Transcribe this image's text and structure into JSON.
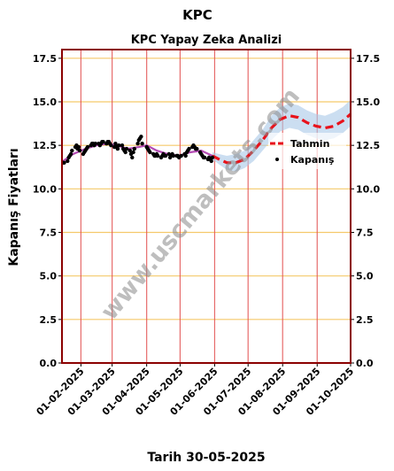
{
  "chart_data": {
    "type": "line",
    "title": "KPC",
    "subtitle": "KPC Yapay Zeka Analizi",
    "xlabel": "Tarih 30-05-2025",
    "ylabel": "Kapanış Fiyatları",
    "ylim": [
      0,
      18
    ],
    "yticks": [
      "0.0",
      "2.5",
      "5.0",
      "7.5",
      "10.0",
      "12.5",
      "15.0",
      "17.5"
    ],
    "ytick_values": [
      0,
      2.5,
      5,
      7.5,
      10,
      12.5,
      15,
      17.5
    ],
    "xlim": [
      "2025-01-15",
      "2025-10-01"
    ],
    "xticks": [
      "01-02-2025",
      "01-03-2025",
      "01-04-2025",
      "01-05-2025",
      "01-06-2025",
      "01-07-2025",
      "01-08-2025",
      "01-09-2025",
      "01-10-2025"
    ],
    "xtick_dates": [
      "2025-02-01",
      "2025-03-01",
      "2025-04-01",
      "2025-05-01",
      "2025-06-01",
      "2025-07-01",
      "2025-08-01",
      "2025-09-01",
      "2025-10-01"
    ],
    "grid": true,
    "legend_position": "right",
    "watermark": "www.uscmarkets.com",
    "colors": {
      "close": "#000000",
      "smooth": "#b44bb4",
      "forecast": "#e8121b",
      "band": "#a8c8e8",
      "hgrid": "#f5c96a",
      "vgrid": "#e35252",
      "frame": "#8b0000"
    },
    "series": [
      {
        "name": "Kapanış",
        "kind": "scatter",
        "x": [
          "2025-01-16",
          "2025-01-17",
          "2025-01-20",
          "2025-01-21",
          "2025-01-22",
          "2025-01-23",
          "2025-01-24",
          "2025-01-27",
          "2025-01-28",
          "2025-01-29",
          "2025-01-30",
          "2025-01-31",
          "2025-02-03",
          "2025-02-04",
          "2025-02-05",
          "2025-02-06",
          "2025-02-07",
          "2025-02-10",
          "2025-02-11",
          "2025-02-12",
          "2025-02-13",
          "2025-02-14",
          "2025-02-17",
          "2025-02-18",
          "2025-02-19",
          "2025-02-20",
          "2025-02-21",
          "2025-02-24",
          "2025-02-25",
          "2025-02-26",
          "2025-02-27",
          "2025-02-28",
          "2025-03-03",
          "2025-03-04",
          "2025-03-05",
          "2025-03-06",
          "2025-03-07",
          "2025-03-10",
          "2025-03-11",
          "2025-03-12",
          "2025-03-13",
          "2025-03-14",
          "2025-03-17",
          "2025-03-18",
          "2025-03-19",
          "2025-03-20",
          "2025-03-21",
          "2025-03-24",
          "2025-03-25",
          "2025-03-26",
          "2025-03-27",
          "2025-03-28",
          "2025-04-01",
          "2025-04-02",
          "2025-04-03",
          "2025-04-04",
          "2025-04-07",
          "2025-04-08",
          "2025-04-09",
          "2025-04-10",
          "2025-04-11",
          "2025-04-14",
          "2025-04-15",
          "2025-04-16",
          "2025-04-17",
          "2025-04-18",
          "2025-04-21",
          "2025-04-22",
          "2025-04-23",
          "2025-04-24",
          "2025-04-25",
          "2025-04-28",
          "2025-04-29",
          "2025-04-30",
          "2025-05-02",
          "2025-05-05",
          "2025-05-06",
          "2025-05-07",
          "2025-05-08",
          "2025-05-09",
          "2025-05-12",
          "2025-05-13",
          "2025-05-14",
          "2025-05-15",
          "2025-05-16",
          "2025-05-19",
          "2025-05-20",
          "2025-05-21",
          "2025-05-22",
          "2025-05-23",
          "2025-05-26",
          "2025-05-27",
          "2025-05-28",
          "2025-05-29",
          "2025-05-30"
        ],
        "y": [
          11.5,
          11.5,
          11.6,
          11.8,
          11.9,
          12.0,
          12.2,
          12.4,
          12.5,
          12.3,
          12.4,
          12.2,
          12.0,
          12.1,
          12.2,
          12.3,
          12.4,
          12.5,
          12.6,
          12.6,
          12.5,
          12.6,
          12.6,
          12.5,
          12.6,
          12.7,
          12.7,
          12.6,
          12.7,
          12.7,
          12.6,
          12.5,
          12.4,
          12.6,
          12.4,
          12.3,
          12.5,
          12.5,
          12.3,
          12.2,
          12.1,
          12.3,
          12.2,
          12.0,
          11.8,
          12.1,
          12.3,
          12.6,
          12.8,
          12.9,
          13.0,
          12.6,
          12.4,
          12.3,
          12.2,
          12.1,
          12.0,
          11.9,
          11.9,
          12.0,
          11.9,
          11.8,
          11.9,
          12.0,
          11.9,
          11.9,
          12.0,
          11.8,
          11.9,
          12.0,
          11.9,
          11.9,
          11.9,
          11.8,
          11.9,
          12.0,
          11.9,
          12.1,
          12.2,
          12.3,
          12.4,
          12.5,
          12.4,
          12.3,
          12.3,
          12.1,
          12.0,
          11.9,
          11.8,
          11.8,
          11.7,
          11.8,
          11.7,
          11.6,
          11.8
        ]
      },
      {
        "name": "",
        "kind": "line",
        "x": [
          "2025-01-16",
          "2025-01-25",
          "2025-02-05",
          "2025-02-15",
          "2025-02-25",
          "2025-03-05",
          "2025-03-15",
          "2025-03-25",
          "2025-04-01",
          "2025-04-10",
          "2025-04-20",
          "2025-04-30",
          "2025-05-10",
          "2025-05-20",
          "2025-05-30"
        ],
        "y": [
          11.6,
          12.0,
          12.3,
          12.5,
          12.6,
          12.5,
          12.3,
          12.4,
          12.5,
          12.2,
          12.0,
          11.9,
          12.1,
          12.2,
          11.9
        ]
      },
      {
        "name": "Tahmin",
        "kind": "dashed-line",
        "x": [
          "2025-05-30",
          "2025-06-05",
          "2025-06-12",
          "2025-06-20",
          "2025-06-28",
          "2025-07-06",
          "2025-07-14",
          "2025-07-22",
          "2025-07-30",
          "2025-08-07",
          "2025-08-15",
          "2025-08-23",
          "2025-08-31",
          "2025-09-08",
          "2025-09-16",
          "2025-09-24",
          "2025-10-01"
        ],
        "y": [
          11.9,
          11.7,
          11.5,
          11.5,
          11.7,
          12.2,
          12.8,
          13.5,
          14.0,
          14.2,
          14.1,
          13.8,
          13.6,
          13.5,
          13.6,
          13.9,
          14.3
        ]
      },
      {
        "name": "",
        "kind": "band",
        "x": [
          "2025-05-30",
          "2025-06-05",
          "2025-06-12",
          "2025-06-20",
          "2025-06-28",
          "2025-07-06",
          "2025-07-14",
          "2025-07-22",
          "2025-07-30",
          "2025-08-07",
          "2025-08-15",
          "2025-08-23",
          "2025-08-31",
          "2025-09-08",
          "2025-09-16",
          "2025-09-24",
          "2025-10-01"
        ],
        "lower": [
          11.7,
          11.4,
          11.1,
          11.0,
          11.2,
          11.6,
          12.2,
          12.8,
          13.3,
          13.5,
          13.4,
          13.1,
          12.9,
          12.8,
          12.9,
          13.2,
          13.6
        ],
        "upper": [
          12.1,
          12.0,
          11.9,
          12.0,
          12.2,
          12.8,
          13.4,
          14.2,
          14.7,
          14.9,
          14.8,
          14.5,
          14.3,
          14.2,
          14.4,
          14.7,
          15.1
        ]
      }
    ]
  }
}
